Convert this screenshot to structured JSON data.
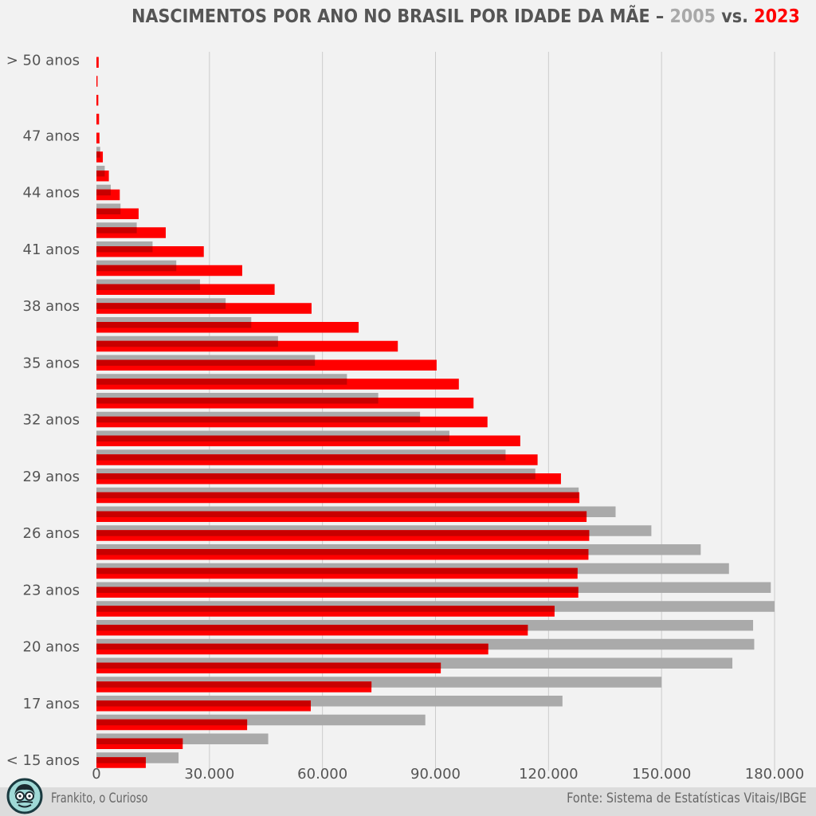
{
  "header": {
    "title_prefix": "NASCIMENTOS POR ANO NO BRASIL POR IDADE DA MÃE –",
    "year_a": "2005",
    "vs": "vs.",
    "year_b": "2023"
  },
  "footer": {
    "author": "Frankito, o Curioso",
    "source": "Fonte: Sistema de Estatísticas Vitais/IBGE"
  },
  "colors": {
    "series_2005": "#aaaaaa",
    "series_2023": "#ff0000",
    "overlap": "#c80000",
    "grid": "#cccccc",
    "text": "#555555"
  },
  "chart_data": {
    "type": "bar",
    "orientation": "horizontal",
    "ages": [
      ">50",
      "50",
      "49",
      "48",
      "47",
      "46",
      "45",
      "44",
      "43",
      "42",
      "41",
      "40",
      "39",
      "38",
      "37",
      "36",
      "35",
      "34",
      "33",
      "32",
      "31",
      "30",
      "29",
      "28",
      "27",
      "26",
      "25",
      "24",
      "23",
      "22",
      "21",
      "20",
      "19",
      "18",
      "17",
      "16",
      "15",
      "<15"
    ],
    "y_tick_labels": [
      {
        "age": ">50",
        "label": "> 50 anos"
      },
      {
        "age": "47",
        "label": "47 anos"
      },
      {
        "age": "44",
        "label": "44 anos"
      },
      {
        "age": "41",
        "label": "41 anos"
      },
      {
        "age": "38",
        "label": "38 anos"
      },
      {
        "age": "35",
        "label": "35 anos"
      },
      {
        "age": "32",
        "label": "32 anos"
      },
      {
        "age": "29",
        "label": "29 anos"
      },
      {
        "age": "26",
        "label": "26 anos"
      },
      {
        "age": "23",
        "label": "23 anos"
      },
      {
        "age": "20",
        "label": "20 anos"
      },
      {
        "age": "17",
        "label": "17 anos"
      },
      {
        "age": "<15",
        "label": "< 15 anos"
      }
    ],
    "series": [
      {
        "name": "2005",
        "values": [
          0,
          0,
          0,
          0,
          0,
          1000,
          2200,
          3800,
          6400,
          10700,
          14900,
          21200,
          27500,
          34300,
          41100,
          48200,
          58000,
          66500,
          74800,
          85900,
          93700,
          108600,
          116500,
          128000,
          137800,
          147300,
          160400,
          167900,
          179000,
          180000,
          174300,
          174600,
          168800,
          150000,
          123700,
          87300,
          45600,
          21800
        ]
      },
      {
        "name": "2023",
        "values": [
          600,
          300,
          500,
          700,
          800,
          1700,
          3300,
          6200,
          11200,
          18400,
          28500,
          38700,
          47300,
          57100,
          69600,
          80000,
          90300,
          96200,
          100100,
          103800,
          112500,
          117100,
          123300,
          128200,
          130100,
          130800,
          130600,
          127700,
          127900,
          121600,
          114500,
          104000,
          91400,
          73000,
          56900,
          40000,
          22900,
          13100
        ]
      }
    ],
    "xlim": [
      0,
      180000
    ],
    "x_ticks": [
      {
        "value": 0,
        "label": "0"
      },
      {
        "value": 30000,
        "label": "30.000"
      },
      {
        "value": 60000,
        "label": "60.000"
      },
      {
        "value": 90000,
        "label": "90.000"
      },
      {
        "value": 120000,
        "label": "120.000"
      },
      {
        "value": 150000,
        "label": "150.000"
      },
      {
        "value": 180000,
        "label": "180.000"
      }
    ],
    "grid": "vertical"
  }
}
